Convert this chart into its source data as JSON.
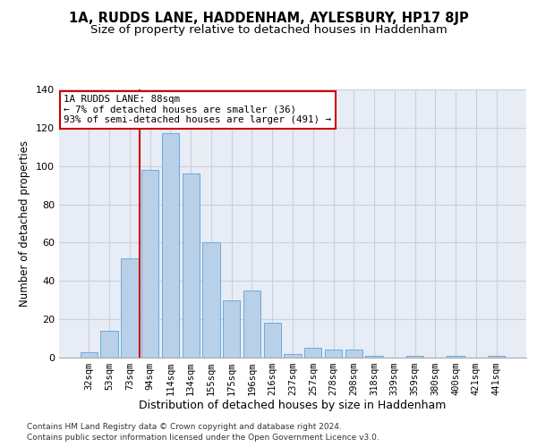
{
  "title": "1A, RUDDS LANE, HADDENHAM, AYLESBURY, HP17 8JP",
  "subtitle": "Size of property relative to detached houses in Haddenham",
  "xlabel": "Distribution of detached houses by size in Haddenham",
  "ylabel": "Number of detached properties",
  "categories": [
    "32sqm",
    "53sqm",
    "73sqm",
    "94sqm",
    "114sqm",
    "134sqm",
    "155sqm",
    "175sqm",
    "196sqm",
    "216sqm",
    "237sqm",
    "257sqm",
    "278sqm",
    "298sqm",
    "318sqm",
    "339sqm",
    "359sqm",
    "380sqm",
    "400sqm",
    "421sqm",
    "441sqm"
  ],
  "values": [
    3,
    14,
    52,
    98,
    117,
    96,
    60,
    30,
    35,
    18,
    2,
    5,
    4,
    4,
    1,
    0,
    1,
    0,
    1,
    0,
    1
  ],
  "bar_color": "#b8d0e8",
  "bar_edge_color": "#6aabe0",
  "vline_color": "#cc0000",
  "annotation_text": "1A RUDDS LANE: 88sqm\n← 7% of detached houses are smaller (36)\n93% of semi-detached houses are larger (491) →",
  "annotation_box_color": "#ffffff",
  "annotation_box_edge": "#cc0000",
  "ylim": [
    0,
    140
  ],
  "yticks": [
    0,
    20,
    40,
    60,
    80,
    100,
    120,
    140
  ],
  "grid_color": "#c8d0e0",
  "bg_color": "#e8ecf4",
  "footer1": "Contains HM Land Registry data © Crown copyright and database right 2024.",
  "footer2": "Contains public sector information licensed under the Open Government Licence v3.0.",
  "title_fontsize": 10.5,
  "subtitle_fontsize": 9.5,
  "vline_bar_index": 3
}
